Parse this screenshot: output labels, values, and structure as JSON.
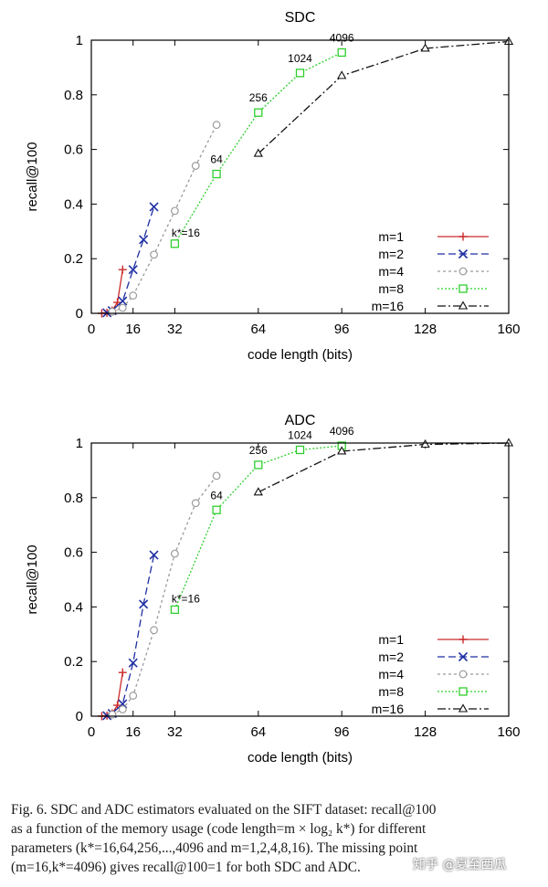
{
  "chart_data": [
    {
      "type": "line",
      "title": "SDC",
      "xlabel": "code length (bits)",
      "ylabel": "recall@100",
      "xlim": [
        0,
        160
      ],
      "ylim": [
        0,
        1
      ],
      "xticks": [
        0,
        16,
        32,
        64,
        96,
        128,
        160
      ],
      "yticks": [
        0,
        0.2,
        0.4,
        0.6,
        0.8,
        1
      ],
      "ytick_labels": [
        "0",
        "0.2",
        "0.4",
        "0.6",
        "0.8",
        "1"
      ],
      "legend": "bottom-right",
      "series": [
        {
          "name": "m=1",
          "color": "#cc2a2a",
          "dash": "",
          "marker": "plus",
          "x": [
            4,
            6,
            8,
            10,
            12
          ],
          "y": [
            0.0,
            0.002,
            0.01,
            0.04,
            0.16
          ]
        },
        {
          "name": "m=2",
          "color": "#1f2fa3",
          "dash": "8,4",
          "marker": "cross",
          "x": [
            6,
            8,
            12,
            16,
            20,
            24
          ],
          "y": [
            0.002,
            0.01,
            0.045,
            0.16,
            0.27,
            0.39
          ]
        },
        {
          "name": "m=4",
          "color": "#9a9a9a",
          "dash": "3,3",
          "marker": "circle",
          "x": [
            8,
            12,
            16,
            24,
            32,
            40,
            48
          ],
          "y": [
            0.006,
            0.02,
            0.065,
            0.215,
            0.375,
            0.54,
            0.69
          ]
        },
        {
          "name": "m=8",
          "color": "#2ecf2e",
          "dash": "2,2",
          "marker": "square",
          "x": [
            32,
            48,
            64,
            80,
            96
          ],
          "y": [
            0.255,
            0.51,
            0.735,
            0.88,
            0.955
          ]
        },
        {
          "name": "m=16",
          "color": "#111111",
          "dash": "9,3,2,3",
          "marker": "triangle",
          "x": [
            64,
            96,
            128,
            160
          ],
          "y": [
            0.585,
            0.87,
            0.97,
            0.995
          ]
        }
      ],
      "annotations": [
        {
          "text": "k*=16",
          "x": 32,
          "y": 0.255
        },
        {
          "text": "64",
          "x": 48,
          "y": 0.51
        },
        {
          "text": "256",
          "x": 64,
          "y": 0.735
        },
        {
          "text": "1024",
          "x": 80,
          "y": 0.88
        },
        {
          "text": "4096",
          "x": 96,
          "y": 0.955
        }
      ]
    },
    {
      "type": "line",
      "title": "ADC",
      "xlabel": "code length (bits)",
      "ylabel": "recall@100",
      "xlim": [
        0,
        160
      ],
      "ylim": [
        0,
        1
      ],
      "xticks": [
        0,
        16,
        32,
        64,
        96,
        128,
        160
      ],
      "yticks": [
        0,
        0.2,
        0.4,
        0.6,
        0.8,
        1
      ],
      "ytick_labels": [
        "0",
        "0.2",
        "0.4",
        "0.6",
        "0.8",
        "1"
      ],
      "legend": "bottom-right",
      "series": [
        {
          "name": "m=1",
          "color": "#cc2a2a",
          "dash": "",
          "marker": "plus",
          "x": [
            4,
            6,
            8,
            10,
            12
          ],
          "y": [
            0.0,
            0.002,
            0.01,
            0.04,
            0.16
          ]
        },
        {
          "name": "m=2",
          "color": "#1f2fa3",
          "dash": "8,4",
          "marker": "cross",
          "x": [
            6,
            8,
            12,
            16,
            20,
            24
          ],
          "y": [
            0.002,
            0.01,
            0.045,
            0.195,
            0.41,
            0.59
          ]
        },
        {
          "name": "m=4",
          "color": "#9a9a9a",
          "dash": "3,3",
          "marker": "circle",
          "x": [
            8,
            12,
            16,
            24,
            32,
            40,
            48
          ],
          "y": [
            0.006,
            0.025,
            0.075,
            0.315,
            0.595,
            0.78,
            0.88
          ]
        },
        {
          "name": "m=8",
          "color": "#2ecf2e",
          "dash": "2,2",
          "marker": "square",
          "x": [
            32,
            48,
            64,
            80,
            96
          ],
          "y": [
            0.39,
            0.755,
            0.92,
            0.975,
            0.99
          ]
        },
        {
          "name": "m=16",
          "color": "#111111",
          "dash": "9,3,2,3",
          "marker": "triangle",
          "x": [
            64,
            96,
            128,
            160
          ],
          "y": [
            0.82,
            0.97,
            0.995,
            1.0
          ]
        }
      ],
      "annotations": [
        {
          "text": "k*=16",
          "x": 32,
          "y": 0.39
        },
        {
          "text": "64",
          "x": 48,
          "y": 0.755
        },
        {
          "text": "256",
          "x": 64,
          "y": 0.92
        },
        {
          "text": "1024",
          "x": 80,
          "y": 0.975
        },
        {
          "text": "4096",
          "x": 96,
          "y": 0.99
        }
      ]
    }
  ],
  "caption": {
    "line1": "Fig. 6.   SDC and ADC estimators evaluated on the SIFT dataset: recall@100",
    "line2": "as a function of the memory usage (code length=m × log₂ k*) for different",
    "line3": "parameters (k*=16,64,256,...,4096 and m=1,2,4,8,16). The missing point",
    "line4": "(m=16,k*=4096) gives recall@100=1 for both SDC and ADC."
  },
  "watermark": "知乎 @夏至西瓜"
}
